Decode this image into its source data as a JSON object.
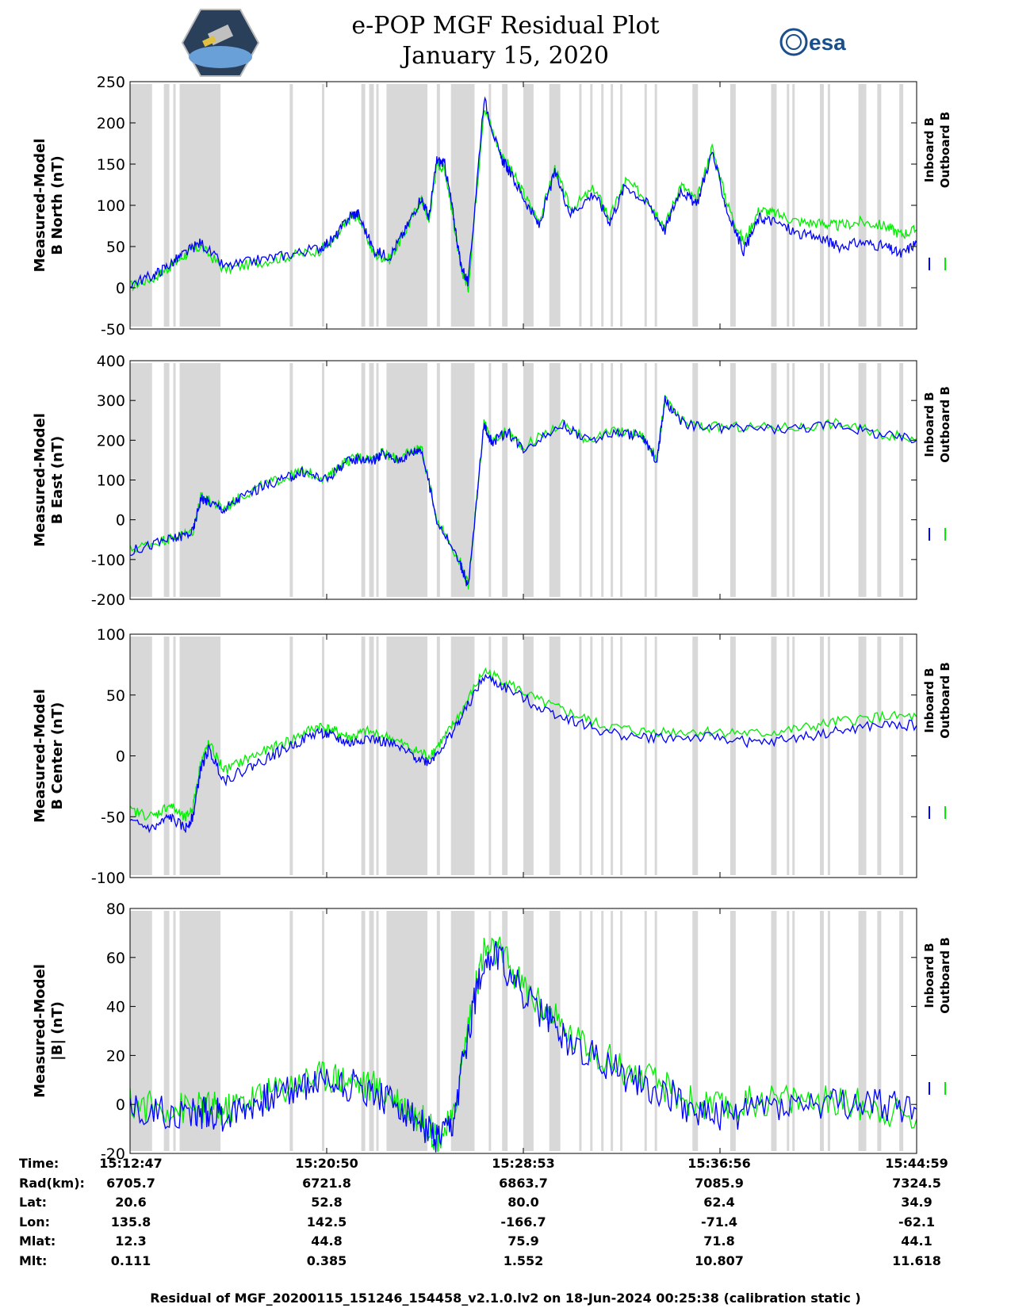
{
  "title": {
    "line1": "e-POP MGF Residual Plot",
    "line2": "January 15, 2020"
  },
  "logos": {
    "left": "cassiope-mission-logo",
    "right_text": "esa"
  },
  "colors": {
    "inboard": "#0000ff",
    "outboard": "#00ee00",
    "shade": "#d8d8d8",
    "axis": "#000000"
  },
  "chart_data": [
    {
      "type": "line",
      "ylabel_line1": "Measured-Model",
      "ylabel_line2": "B North (nT)",
      "ylim": [
        -50,
        250
      ],
      "yticks": [
        -50,
        0,
        50,
        100,
        150,
        200,
        250
      ],
      "legend": [
        "Inboard B",
        "Outboard B"
      ],
      "series": [
        {
          "name": "Inboard B",
          "x": [
            0.0,
            0.03,
            0.05,
            0.07,
            0.09,
            0.12,
            0.16,
            0.2,
            0.24,
            0.26,
            0.28,
            0.29,
            0.31,
            0.33,
            0.35,
            0.37,
            0.38,
            0.39,
            0.4,
            0.41,
            0.42,
            0.43,
            0.45,
            0.47,
            0.48,
            0.5,
            0.52,
            0.54,
            0.56,
            0.59,
            0.61,
            0.63,
            0.66,
            0.68,
            0.7,
            0.72,
            0.74,
            0.76,
            0.78,
            0.8,
            0.82,
            0.85,
            0.88,
            0.9,
            0.93,
            0.96,
            0.98,
            1.0
          ],
          "values": [
            5,
            15,
            28,
            42,
            55,
            25,
            33,
            40,
            48,
            60,
            88,
            90,
            45,
            38,
            70,
            110,
            85,
            155,
            150,
            95,
            30,
            5,
            230,
            160,
            145,
            110,
            75,
            140,
            90,
            115,
            80,
            125,
            100,
            70,
            120,
            100,
            165,
            90,
            45,
            85,
            80,
            65,
            60,
            50,
            55,
            50,
            40,
            55
          ]
        },
        {
          "name": "Outboard B",
          "x": [
            0.0,
            0.03,
            0.05,
            0.07,
            0.09,
            0.12,
            0.16,
            0.2,
            0.24,
            0.26,
            0.28,
            0.29,
            0.31,
            0.33,
            0.35,
            0.37,
            0.38,
            0.39,
            0.4,
            0.41,
            0.42,
            0.43,
            0.45,
            0.47,
            0.48,
            0.5,
            0.52,
            0.54,
            0.56,
            0.59,
            0.61,
            0.63,
            0.66,
            0.68,
            0.7,
            0.72,
            0.74,
            0.76,
            0.78,
            0.8,
            0.82,
            0.85,
            0.88,
            0.9,
            0.93,
            0.96,
            0.98,
            1.0
          ],
          "values": [
            2,
            12,
            25,
            40,
            50,
            22,
            30,
            38,
            45,
            58,
            85,
            88,
            40,
            35,
            68,
            108,
            82,
            150,
            145,
            90,
            25,
            0,
            220,
            165,
            150,
            115,
            80,
            145,
            95,
            120,
            85,
            130,
            105,
            75,
            125,
            105,
            170,
            100,
            55,
            95,
            90,
            80,
            78,
            75,
            80,
            75,
            65,
            70
          ]
        }
      ]
    },
    {
      "type": "line",
      "ylabel_line1": "Measured-Model",
      "ylabel_line2": "B East (nT)",
      "ylim": [
        -200,
        400
      ],
      "yticks": [
        -200,
        -100,
        0,
        100,
        200,
        300,
        400
      ],
      "legend": [
        "Inboard B",
        "Outboard B"
      ],
      "series": [
        {
          "name": "Inboard B",
          "x": [
            0.0,
            0.04,
            0.06,
            0.08,
            0.09,
            0.1,
            0.12,
            0.14,
            0.17,
            0.2,
            0.22,
            0.25,
            0.27,
            0.29,
            0.31,
            0.32,
            0.34,
            0.36,
            0.37,
            0.39,
            0.42,
            0.43,
            0.45,
            0.46,
            0.48,
            0.5,
            0.55,
            0.58,
            0.62,
            0.65,
            0.67,
            0.68,
            0.7,
            0.73,
            0.78,
            0.85,
            0.9,
            0.95,
            1.0
          ],
          "values": [
            -80,
            -55,
            -45,
            -30,
            55,
            45,
            25,
            55,
            85,
            105,
            120,
            100,
            140,
            155,
            150,
            165,
            150,
            170,
            180,
            0,
            -110,
            -170,
            240,
            195,
            220,
            180,
            240,
            200,
            220,
            210,
            150,
            300,
            245,
            230,
            230,
            230,
            240,
            215,
            200
          ]
        },
        {
          "name": "Outboard B",
          "x": [
            0.0,
            0.04,
            0.06,
            0.08,
            0.09,
            0.1,
            0.12,
            0.14,
            0.17,
            0.2,
            0.22,
            0.25,
            0.27,
            0.29,
            0.31,
            0.32,
            0.34,
            0.36,
            0.37,
            0.39,
            0.42,
            0.43,
            0.45,
            0.46,
            0.48,
            0.5,
            0.55,
            0.58,
            0.62,
            0.65,
            0.67,
            0.68,
            0.7,
            0.73,
            0.78,
            0.85,
            0.9,
            0.95,
            1.0
          ],
          "values": [
            -75,
            -52,
            -42,
            -28,
            58,
            48,
            28,
            58,
            88,
            108,
            123,
            103,
            143,
            158,
            153,
            168,
            153,
            173,
            183,
            3,
            -107,
            -165,
            243,
            198,
            223,
            183,
            243,
            203,
            223,
            213,
            153,
            303,
            248,
            233,
            233,
            233,
            243,
            218,
            203
          ]
        }
      ]
    },
    {
      "type": "line",
      "ylabel_line1": "Measured-Model",
      "ylabel_line2": "B Center (nT)",
      "ylim": [
        -100,
        100
      ],
      "yticks": [
        -100,
        -50,
        0,
        50,
        100
      ],
      "legend": [
        "Inboard B",
        "Outboard B"
      ],
      "series": [
        {
          "name": "Inboard B",
          "x": [
            0.0,
            0.03,
            0.05,
            0.07,
            0.08,
            0.09,
            0.1,
            0.12,
            0.15,
            0.18,
            0.21,
            0.24,
            0.26,
            0.28,
            0.3,
            0.33,
            0.36,
            0.38,
            0.4,
            0.42,
            0.45,
            0.48,
            0.52,
            0.56,
            0.6,
            0.65,
            0.7,
            0.75,
            0.8,
            0.85,
            0.9,
            0.95,
            1.0
          ],
          "values": [
            -55,
            -60,
            -50,
            -60,
            -50,
            -10,
            5,
            -20,
            -10,
            0,
            10,
            20,
            15,
            10,
            15,
            10,
            0,
            -5,
            10,
            30,
            65,
            55,
            40,
            30,
            20,
            15,
            15,
            15,
            10,
            15,
            20,
            25,
            25
          ]
        },
        {
          "name": "Outboard B",
          "x": [
            0.0,
            0.03,
            0.05,
            0.07,
            0.08,
            0.09,
            0.1,
            0.12,
            0.15,
            0.18,
            0.21,
            0.24,
            0.26,
            0.28,
            0.3,
            0.33,
            0.36,
            0.38,
            0.4,
            0.42,
            0.45,
            0.48,
            0.52,
            0.56,
            0.6,
            0.65,
            0.7,
            0.75,
            0.8,
            0.85,
            0.9,
            0.95,
            1.0
          ],
          "values": [
            -45,
            -50,
            -40,
            -52,
            -42,
            -5,
            10,
            -12,
            -2,
            6,
            15,
            25,
            20,
            15,
            20,
            15,
            5,
            0,
            15,
            35,
            70,
            60,
            45,
            35,
            25,
            20,
            20,
            20,
            18,
            22,
            28,
            32,
            32
          ]
        }
      ]
    },
    {
      "type": "line",
      "ylabel_line1": "Measured-Model",
      "ylabel_line2": "|B| (nT)",
      "ylim": [
        -20,
        80
      ],
      "yticks": [
        -20,
        0,
        20,
        40,
        60,
        80
      ],
      "legend": [
        "Inboard B",
        "Outboard B"
      ],
      "series": [
        {
          "name": "Inboard B",
          "x": [
            0.0,
            0.04,
            0.08,
            0.1,
            0.12,
            0.15,
            0.18,
            0.22,
            0.25,
            0.28,
            0.31,
            0.34,
            0.37,
            0.39,
            0.41,
            0.43,
            0.45,
            0.47,
            0.5,
            0.53,
            0.56,
            0.6,
            0.64,
            0.68,
            0.72,
            0.76,
            0.8,
            0.85,
            0.9,
            0.95,
            1.0
          ],
          "values": [
            -2,
            -3,
            -4,
            -3,
            -5,
            0,
            3,
            8,
            10,
            8,
            5,
            0,
            -8,
            -15,
            -10,
            30,
            60,
            60,
            45,
            35,
            25,
            18,
            10,
            5,
            -3,
            -5,
            0,
            0,
            0,
            0,
            -2
          ]
        },
        {
          "name": "Outboard B",
          "x": [
            0.0,
            0.04,
            0.08,
            0.1,
            0.12,
            0.15,
            0.18,
            0.22,
            0.25,
            0.28,
            0.31,
            0.34,
            0.37,
            0.39,
            0.41,
            0.43,
            0.45,
            0.47,
            0.5,
            0.53,
            0.56,
            0.6,
            0.64,
            0.68,
            0.72,
            0.76,
            0.8,
            0.85,
            0.9,
            0.95,
            1.0
          ],
          "values": [
            0,
            -1,
            -2,
            -1,
            -3,
            2,
            5,
            10,
            12,
            10,
            7,
            2,
            -6,
            -13,
            -8,
            33,
            63,
            62,
            48,
            38,
            28,
            20,
            12,
            7,
            0,
            -2,
            2,
            2,
            1,
            -1,
            -6
          ]
        }
      ]
    }
  ],
  "gaps": [
    [
      0.0,
      0.028
    ],
    [
      0.043,
      0.05
    ],
    [
      0.055,
      0.058
    ],
    [
      0.063,
      0.115
    ],
    [
      0.203,
      0.207
    ],
    [
      0.244,
      0.247
    ],
    [
      0.294,
      0.299
    ],
    [
      0.304,
      0.31
    ],
    [
      0.313,
      0.316
    ],
    [
      0.326,
      0.378
    ],
    [
      0.39,
      0.394
    ],
    [
      0.408,
      0.438
    ],
    [
      0.456,
      0.459
    ],
    [
      0.473,
      0.48
    ],
    [
      0.5,
      0.513
    ],
    [
      0.533,
      0.547
    ],
    [
      0.571,
      0.574
    ],
    [
      0.585,
      0.588
    ],
    [
      0.599,
      0.602
    ],
    [
      0.611,
      0.614
    ],
    [
      0.623,
      0.626
    ],
    [
      0.654,
      0.657
    ],
    [
      0.667,
      0.67
    ],
    [
      0.715,
      0.722
    ],
    [
      0.763,
      0.77
    ],
    [
      0.815,
      0.822
    ],
    [
      0.835,
      0.838
    ],
    [
      0.842,
      0.845
    ],
    [
      0.877,
      0.882
    ],
    [
      0.887,
      0.89
    ],
    [
      0.926,
      0.936
    ],
    [
      0.95,
      0.955
    ],
    [
      0.978,
      0.983
    ]
  ],
  "ephemeris": {
    "labels": [
      "Time:",
      "Rad(km):",
      "Lat:",
      "Lon:",
      "Mlat:",
      "Mlt:"
    ],
    "columns": [
      [
        "15:12:47",
        "6705.7",
        "20.6",
        "135.8",
        "12.3",
        "0.111"
      ],
      [
        "15:20:50",
        "6721.8",
        "52.8",
        "142.5",
        "44.8",
        "0.385"
      ],
      [
        "15:28:53",
        "6863.7",
        "80.0",
        "-166.7",
        "75.9",
        "1.552"
      ],
      [
        "15:36:56",
        "7085.9",
        "62.4",
        "-71.4",
        "71.8",
        "10.807"
      ],
      [
        "15:44:59",
        "7324.5",
        "34.9",
        "-62.1",
        "44.1",
        "11.618"
      ]
    ]
  },
  "footer": "Residual of MGF_20200115_151246_154458_v2.1.0.lv2 on 18-Jun-2024 00:25:38 (calibration static )"
}
